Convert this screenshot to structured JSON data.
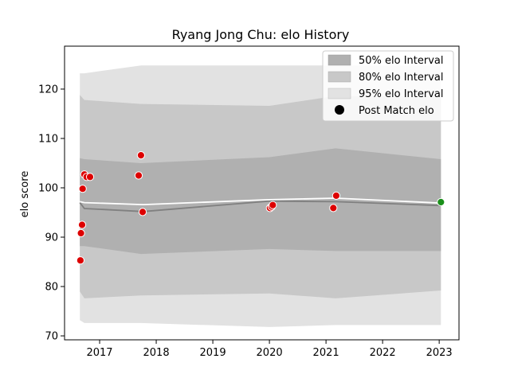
{
  "chart_data": {
    "type": "area",
    "title": "Ryang Jong Chu: elo History",
    "xlabel": "",
    "ylabel": "elo score",
    "xlim": [
      2016.38,
      2023.35
    ],
    "ylim": [
      69.2,
      128.7
    ],
    "xticks": [
      2017,
      2018,
      2019,
      2020,
      2021,
      2022,
      2023
    ],
    "yticks": [
      70,
      80,
      90,
      100,
      110,
      120
    ],
    "grid": false,
    "legend_position": "top-right",
    "colors": {
      "band_50": "#b0b0b0",
      "band_80": "#c8c8c8",
      "band_95": "#e2e2e2",
      "mean_line": "#808080",
      "median_line": "#ffffff",
      "point": "#dd0000",
      "point_last": "#1a8f1a"
    },
    "legend": [
      {
        "label": "50% elo Interval",
        "kind": "patch",
        "color": "#b0b0b0"
      },
      {
        "label": "80% elo Interval",
        "kind": "patch",
        "color": "#c8c8c8"
      },
      {
        "label": "95% elo Interval",
        "kind": "patch",
        "color": "#e2e2e2"
      },
      {
        "label": "Post Match elo",
        "kind": "marker",
        "color": "#000000"
      }
    ],
    "bands": {
      "x": [
        2016.65,
        2016.73,
        2017.73,
        2020.0,
        2021.17,
        2023.03
      ],
      "p95": {
        "lower": [
          73.2,
          72.6,
          72.6,
          71.8,
          72.2,
          72.2
        ],
        "upper": [
          123.2,
          123.2,
          124.8,
          124.8,
          124.8,
          124.8
        ]
      },
      "p80": {
        "lower": [
          79.0,
          77.6,
          78.2,
          78.6,
          77.6,
          79.2
        ],
        "upper": [
          118.8,
          117.8,
          117.0,
          116.6,
          118.6,
          118.6
        ]
      },
      "p50": {
        "lower": [
          88.2,
          88.2,
          86.6,
          87.6,
          87.2,
          87.2
        ],
        "upper": [
          106.0,
          105.8,
          105.0,
          106.2,
          108.0,
          105.8
        ]
      }
    },
    "series": [
      {
        "type": "line",
        "x": [
          2016.65,
          2016.73,
          2017.77,
          2020.0,
          2021.17,
          2023.03
        ],
        "values": [
          97.0,
          95.8,
          95.2,
          97.3,
          97.2,
          96.4
        ]
      },
      {
        "type": "line",
        "x": [
          2016.65,
          2016.73,
          2017.77,
          2020.0,
          2021.17,
          2023.03
        ],
        "values": [
          97.2,
          97.0,
          96.6,
          97.6,
          97.9,
          96.9
        ]
      },
      {
        "name": "Post Match elo",
        "type": "scatter",
        "x": [
          2016.66,
          2016.67,
          2016.69,
          2016.7,
          2016.73,
          2016.77,
          2016.83,
          2017.69,
          2017.73,
          2017.76,
          2020.01,
          2020.04,
          2020.06,
          2021.13,
          2021.18,
          2023.03
        ],
        "values": [
          85.3,
          90.8,
          92.5,
          99.8,
          102.7,
          102.2,
          102.2,
          102.5,
          106.6,
          95.1,
          95.9,
          96.2,
          96.5,
          95.9,
          98.4,
          97.1
        ]
      }
    ]
  }
}
